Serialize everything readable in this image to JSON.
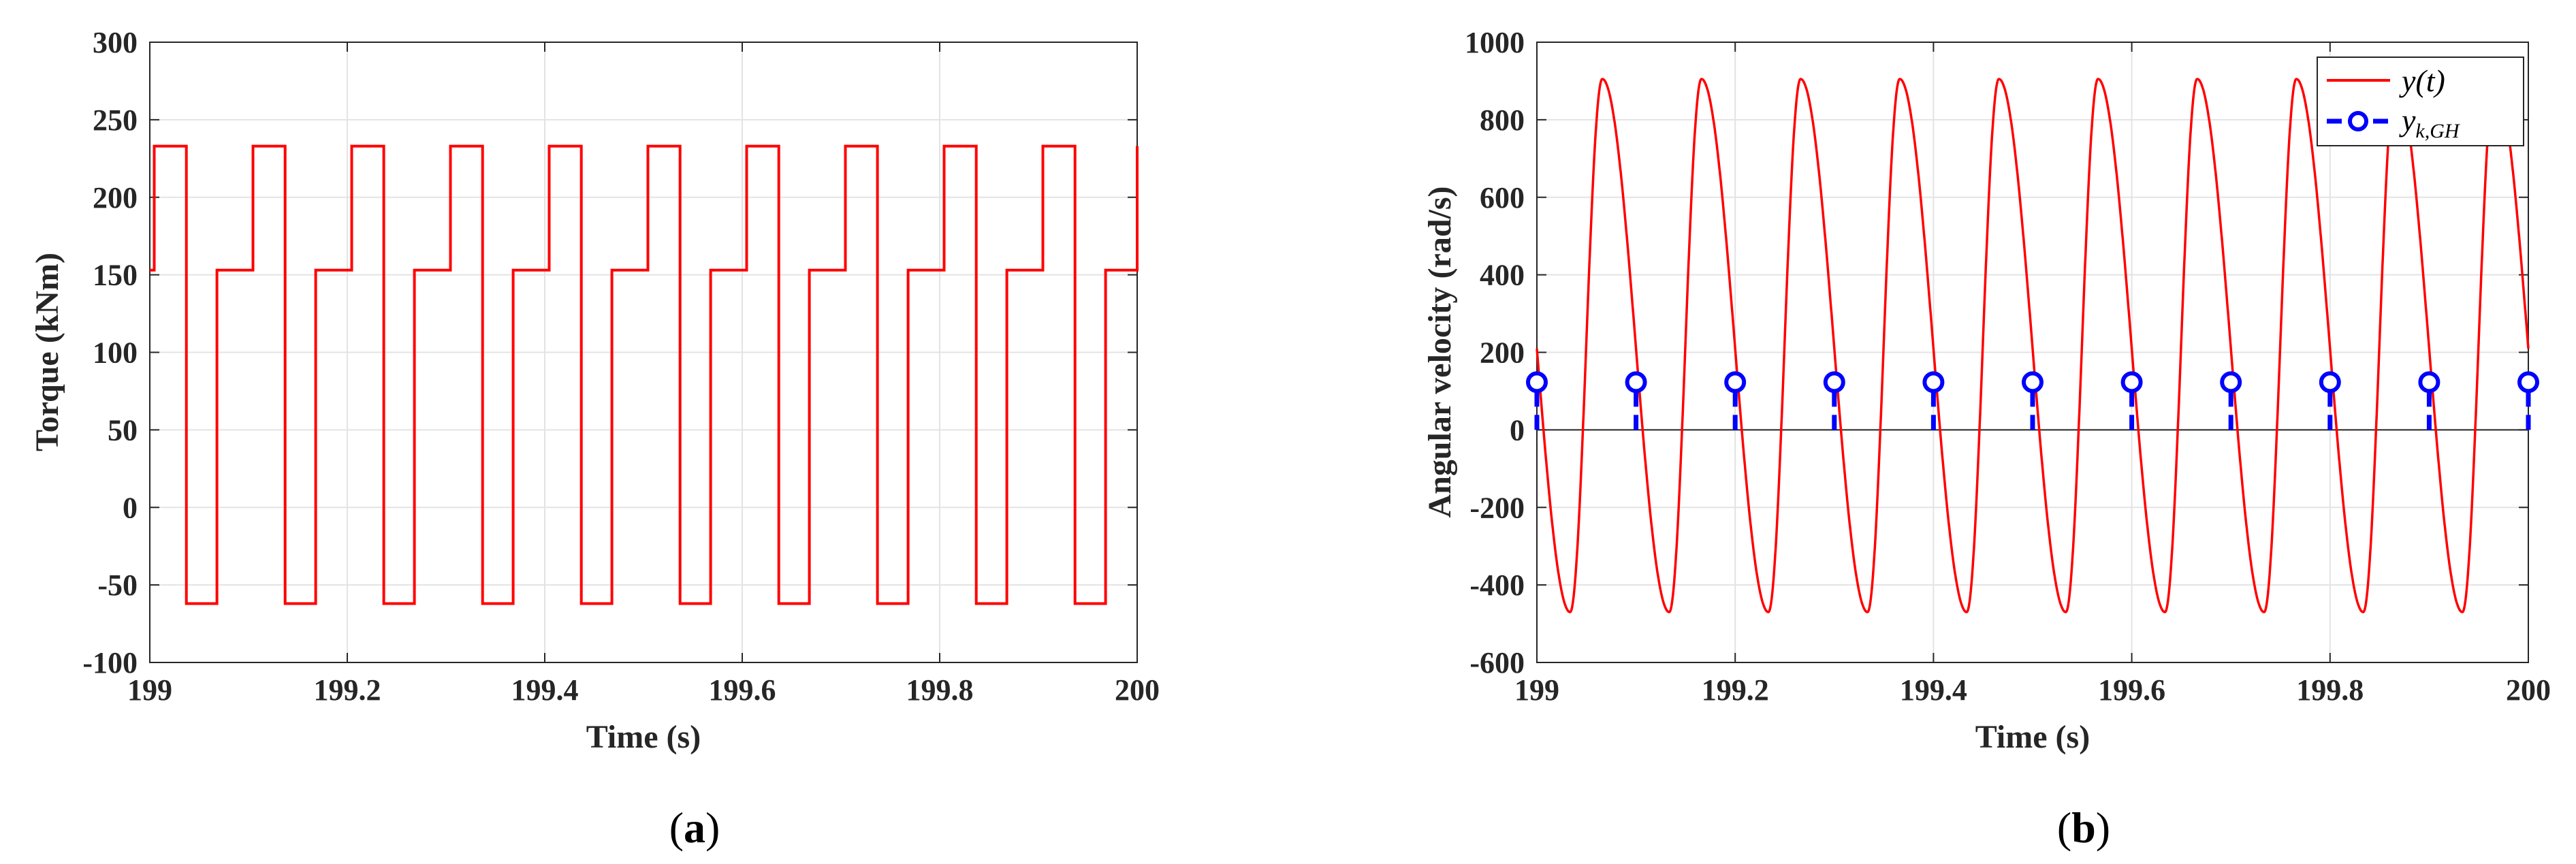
{
  "chart_data": [
    {
      "id": "a",
      "type": "line",
      "panel_label": "a",
      "xlabel": "Time (s)",
      "ylabel": "Torque (kNm)",
      "xlim": [
        199,
        200
      ],
      "ylim": [
        -100,
        300
      ],
      "xticks": [
        199,
        199.2,
        199.4,
        199.6,
        199.8,
        200
      ],
      "xtick_labels": [
        "199",
        "199.2",
        "199.4",
        "199.6",
        "199.8",
        "200"
      ],
      "yticks": [
        -100,
        -50,
        0,
        50,
        100,
        150,
        200,
        250,
        300
      ],
      "ytick_labels": [
        "-100",
        "-50",
        "0",
        "50",
        "100",
        "150",
        "200",
        "250",
        "300"
      ],
      "grid": true,
      "series": [
        {
          "name": "Torque",
          "color": "#ff0000",
          "style": "step",
          "period": 0.1,
          "levels": [
            {
              "from": 0.0,
              "to": 0.0045,
              "value": 153
            },
            {
              "from": 0.0045,
              "to": 0.037,
              "value": 233
            },
            {
              "from": 0.037,
              "to": 0.068,
              "value": -62
            },
            {
              "from": 0.068,
              "to": 0.1,
              "value": 153
            }
          ]
        }
      ]
    },
    {
      "id": "b",
      "type": "line",
      "panel_label": "b",
      "xlabel": "Time (s)",
      "ylabel": "Angular velocity (rad/s)",
      "xlim": [
        199,
        200
      ],
      "ylim": [
        -600,
        1000
      ],
      "xticks": [
        199,
        199.2,
        199.4,
        199.6,
        199.8,
        200
      ],
      "xtick_labels": [
        "199",
        "199.2",
        "199.4",
        "199.6",
        "199.8",
        "200"
      ],
      "yticks": [
        -600,
        -400,
        -200,
        0,
        200,
        400,
        600,
        800,
        1000
      ],
      "ytick_labels": [
        "-600",
        "-400",
        "-200",
        "0",
        "200",
        "400",
        "600",
        "800",
        "1000"
      ],
      "grid": true,
      "legend_position": "top-right",
      "series": [
        {
          "name": "y(t)",
          "color": "#ff0000",
          "style": "solid",
          "period": 0.1,
          "max": 905,
          "min": -470,
          "peak_phase": 0.066,
          "trough_phase": 0.0335
        },
        {
          "name": "y_k,GH",
          "color": "#0000ff",
          "style": "dashed-circle",
          "x": [
            199,
            199.1,
            199.2,
            199.3,
            199.4,
            199.5,
            199.6,
            199.7,
            199.8,
            199.9,
            200
          ],
          "y": [
            123,
            123,
            123,
            123,
            123,
            123,
            123,
            123,
            123,
            123,
            123
          ]
        }
      ],
      "legend": [
        {
          "label": "y(t)",
          "main": "y(t)",
          "sub": ""
        },
        {
          "label": "y_k,GH",
          "main": "y",
          "sub": "k,GH"
        }
      ]
    }
  ]
}
